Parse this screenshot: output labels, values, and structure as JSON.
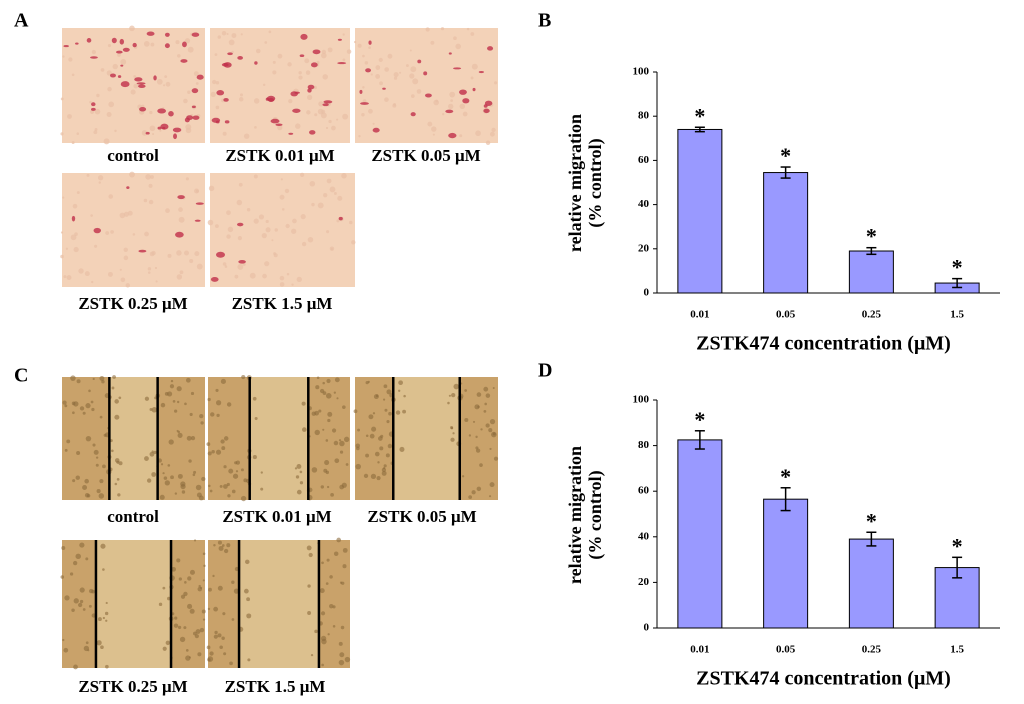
{
  "panel_labels": [
    "A",
    "B",
    "C",
    "D"
  ],
  "image_captions": {
    "A": [
      "control",
      "ZSTK 0.01 μM",
      "ZSTK 0.05 μM",
      "ZSTK 0.25 μM",
      "ZSTK 1.5 μM"
    ],
    "C": [
      "control",
      "ZSTK 0.01 μM",
      "ZSTK 0.05 μM",
      "ZSTK 0.25 μM",
      "ZSTK 1.5 μM"
    ]
  },
  "chart_data": [
    {
      "type": "bar",
      "y_label": [
        "relative migration",
        "(% control)"
      ],
      "x_label": "ZSTK474 concentration (μM)",
      "categories": [
        "0.01",
        "0.05",
        "0.25",
        "1.5"
      ],
      "values": [
        74,
        54.5,
        19,
        4.5
      ],
      "errors": [
        1,
        2.5,
        1.5,
        2
      ],
      "annotations": [
        "*",
        "*",
        "*",
        "*"
      ],
      "color": "#9999ff",
      "ylim": [
        0,
        100
      ],
      "yticks": [
        0,
        20,
        40,
        60,
        80,
        100
      ]
    },
    {
      "type": "bar",
      "y_label": [
        "relative migration",
        "(% control)"
      ],
      "x_label": "ZSTK474 concentration (μM)",
      "categories": [
        "0.01",
        "0.05",
        "0.25",
        "1.5"
      ],
      "values": [
        82.5,
        56.5,
        39,
        26.5
      ],
      "errors": [
        4,
        5,
        3,
        4.5
      ],
      "annotations": [
        "*",
        "*",
        "*",
        "*"
      ],
      "color": "#9999ff",
      "ylim": [
        0,
        100
      ],
      "yticks": [
        0,
        20,
        40,
        60,
        80,
        100
      ]
    }
  ]
}
